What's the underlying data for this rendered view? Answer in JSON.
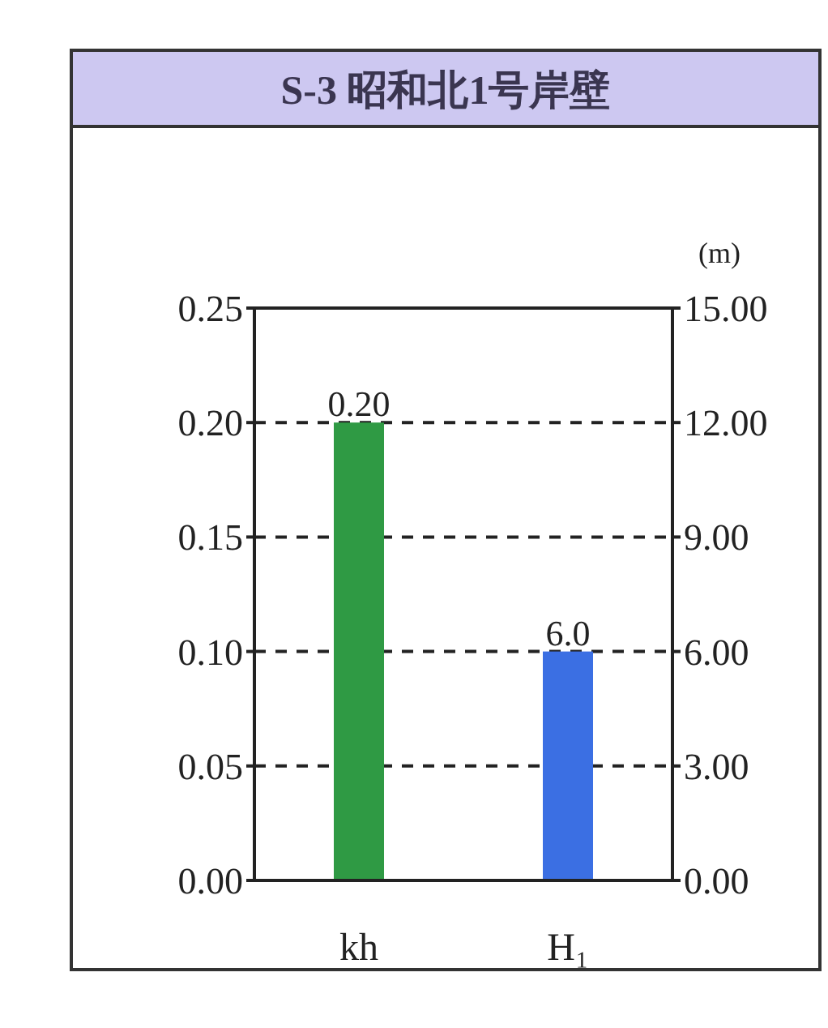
{
  "chart_data": {
    "type": "bar",
    "title": "S-3 昭和北1号岸壁",
    "y2label": "(m)",
    "categories": [
      "kh",
      "H₁"
    ],
    "series": [
      {
        "color": "#2f9a44",
        "values": [
          0.2,
          null
        ],
        "value_labels": [
          "0.20",
          null
        ]
      },
      {
        "color": "#3b6fe3",
        "values": [
          null,
          6.0
        ],
        "value_labels": [
          null,
          "6.0"
        ],
        "axis": "y2"
      }
    ],
    "ylim": [
      0,
      0.25
    ],
    "yticks": [
      {
        "value": 0,
        "label": "0.00"
      },
      {
        "value": 0.05,
        "label": "0.05"
      },
      {
        "value": 0.1,
        "label": "0.10"
      },
      {
        "value": 0.15,
        "label": "0.15"
      },
      {
        "value": 0.2,
        "label": "0.20"
      },
      {
        "value": 0.25,
        "label": "0.25"
      }
    ],
    "y2lim": [
      0,
      15
    ],
    "y2ticks": [
      {
        "value": 0,
        "label": "0.00"
      },
      {
        "value": 3,
        "label": "3.00"
      },
      {
        "value": 6,
        "label": "6.00"
      },
      {
        "value": 9,
        "label": "9.00"
      },
      {
        "value": 12,
        "label": "12.00"
      },
      {
        "value": 15,
        "label": "15.00"
      }
    ],
    "grid": "y"
  }
}
